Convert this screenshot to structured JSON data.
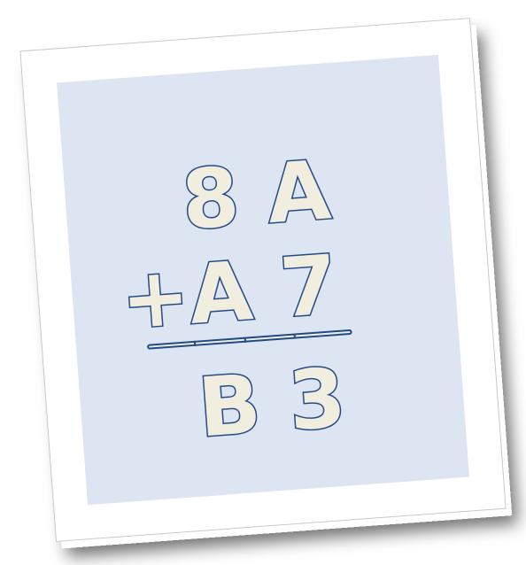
{
  "problem": {
    "line1": "8 A",
    "line2": "+A 7",
    "result": "B 3"
  },
  "colors": {
    "card_background": "#ffffff",
    "panel_background": "#dde5f3",
    "glyph_fill": "#f1eedf",
    "glyph_outline": "#234a86"
  }
}
